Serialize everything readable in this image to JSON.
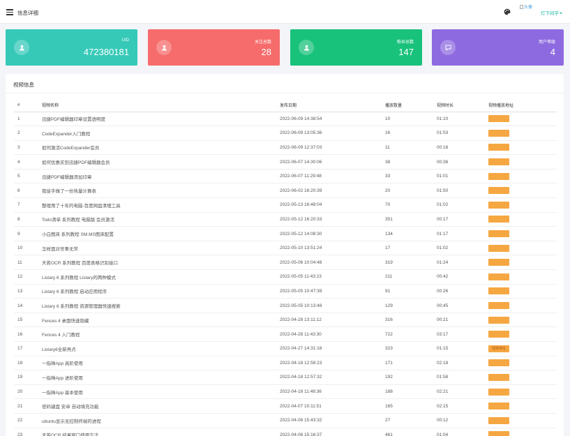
{
  "header": {
    "title": "信息详细",
    "avatar_alt": "头像",
    "user_name": "灯下闷学"
  },
  "colors": {
    "card_uid": "#36c9b8",
    "card_follow": "#f66b6b",
    "card_fans": "#19c27b",
    "card_level": "#8e6ae0",
    "play_button": "#f5a742"
  },
  "stats": [
    {
      "label": "UID",
      "value": "472380181",
      "icon": "user-icon"
    },
    {
      "label": "关注总数",
      "value": "28",
      "icon": "user-icon"
    },
    {
      "label": "粉丝总数",
      "value": "147",
      "icon": "user-icon"
    },
    {
      "label": "用户等级",
      "value": "4",
      "icon": "chat-icon"
    }
  ],
  "panel": {
    "title": "视频信息",
    "columns": [
      "#",
      "视频名称",
      "发布日期",
      "播放数量",
      "视频时长",
      "视频播放地址"
    ],
    "play_label": "视频地址",
    "rows": [
      {
        "no": "1",
        "name": "迅捷PDF编辑器印章设置透明度",
        "date": "2022-06-09 14:38:54",
        "plays": "10",
        "duration": "01:10"
      },
      {
        "no": "2",
        "name": "CodeExpander入门教程",
        "date": "2022-06-09 13:05:36",
        "plays": "16",
        "duration": "01:53"
      },
      {
        "no": "3",
        "name": "如何激活CodeExpander会员",
        "date": "2022-06-09 12:37:03",
        "plays": "11",
        "duration": "00:18"
      },
      {
        "no": "4",
        "name": "如何优惠买到迅捷PDF编辑器会员",
        "date": "2022-06-07 14:30:06",
        "plays": "38",
        "duration": "00:36"
      },
      {
        "no": "5",
        "name": "迅捷PDF编辑器添加印章",
        "date": "2022-06-07 11:29:48",
        "plays": "33",
        "duration": "01:01"
      },
      {
        "no": "6",
        "name": "我徒手做了一份热量计算表",
        "date": "2022-06-02 16:20:39",
        "plays": "20",
        "duration": "01:50"
      },
      {
        "no": "7",
        "name": "整理用了十年的电脑-百度网盘清理工具",
        "date": "2022-05-13 16:48:04",
        "plays": "70",
        "duration": "01:02"
      },
      {
        "no": "8",
        "name": "Todo清单 系列教程 电脑版 会员激活",
        "date": "2022-05-12 16:20:33",
        "plays": "351",
        "duration": "00:17"
      },
      {
        "no": "9",
        "name": "小白图床 系列教程 SM.MS图床配置",
        "date": "2022-05-12 14:08:30",
        "plays": "134",
        "duration": "01:17"
      },
      {
        "no": "10",
        "name": "怎样面对世事无常",
        "date": "2022-05-10 13:51:24",
        "plays": "17",
        "duration": "01:02"
      },
      {
        "no": "11",
        "name": "天若OCR 系列教程 百度表格识别接口",
        "date": "2022-05-06 10:04:48",
        "plays": "319",
        "duration": "01:24"
      },
      {
        "no": "12",
        "name": "Listary 6 系列教程 Listary的两种模式",
        "date": "2022-05-05 11:43:23",
        "plays": "211",
        "duration": "00:42"
      },
      {
        "no": "13",
        "name": "Listary 6 系列教程 启动应用程序",
        "date": "2022-05-05 10:47:39",
        "plays": "91",
        "duration": "00:26"
      },
      {
        "no": "14",
        "name": "Listary 6 系列教程 资源管理器快速搜索",
        "date": "2022-05-05 10:13:48",
        "plays": "129",
        "duration": "00:45"
      },
      {
        "no": "15",
        "name": "Fences 4 桌面快速隐藏",
        "date": "2022-04-28 13:11:12",
        "plays": "316",
        "duration": "00:21"
      },
      {
        "no": "16",
        "name": "Fences 4 入门教程",
        "date": "2022-04-28 11:43:30",
        "plays": "722",
        "duration": "03:17"
      },
      {
        "no": "17",
        "name": "Listary6全新亮点",
        "date": "2022-04-27 14:31:18",
        "plays": "323",
        "duration": "01:15"
      },
      {
        "no": "18",
        "name": "一指禅App 高阶使用",
        "date": "2022-04-18 12:58:23",
        "plays": "171",
        "duration": "02:18"
      },
      {
        "no": "19",
        "name": "一指禅App 进阶使用",
        "date": "2022-04-18 12:57:32",
        "plays": "192",
        "duration": "01:58"
      },
      {
        "no": "20",
        "name": "一指禅App 基本使用",
        "date": "2022-04-18 11:48:36",
        "plays": "188",
        "duration": "02:21"
      },
      {
        "no": "21",
        "name": "密码键盘 安卓 自动填充功能",
        "date": "2022-04-07 10:11:51",
        "plays": "165",
        "duration": "02:15"
      },
      {
        "no": "22",
        "name": "ubuntu显示无控制终端的进程",
        "date": "2022-04-06 15:43:32",
        "plays": "27",
        "duration": "00:12"
      },
      {
        "no": "23",
        "name": "天若OCR 结果窗口使用方法",
        "date": "2022-04-06 15:16:37",
        "plays": "461",
        "duration": "01:04"
      }
    ]
  }
}
